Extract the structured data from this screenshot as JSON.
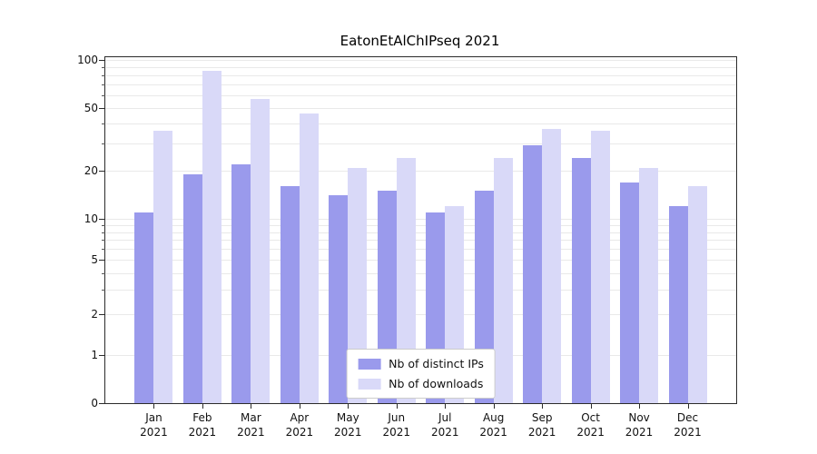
{
  "chart_data": {
    "type": "bar",
    "title": "EatonEtAlChIPseq 2021",
    "categories": [
      "Jan",
      "Feb",
      "Mar",
      "Apr",
      "May",
      "Jun",
      "Jul",
      "Aug",
      "Sep",
      "Oct",
      "Nov",
      "Dec"
    ],
    "year_label": "2021",
    "series": [
      {
        "name": "Nb of distinct IPs",
        "color": "#9a9aec",
        "values": [
          11,
          19,
          22,
          16,
          14,
          15,
          11,
          15,
          29,
          24,
          17,
          12
        ]
      },
      {
        "name": "Nb of downloads",
        "color": "#d9d9f8",
        "values": [
          36,
          85,
          57,
          46,
          21,
          24,
          12,
          24,
          37,
          36,
          21,
          16
        ]
      }
    ],
    "yticks": [
      0,
      1,
      2,
      5,
      10,
      20,
      50,
      100
    ],
    "ylim": [
      0,
      100
    ],
    "yscale": "symlog",
    "grid": true,
    "legend_position": "lower center"
  }
}
